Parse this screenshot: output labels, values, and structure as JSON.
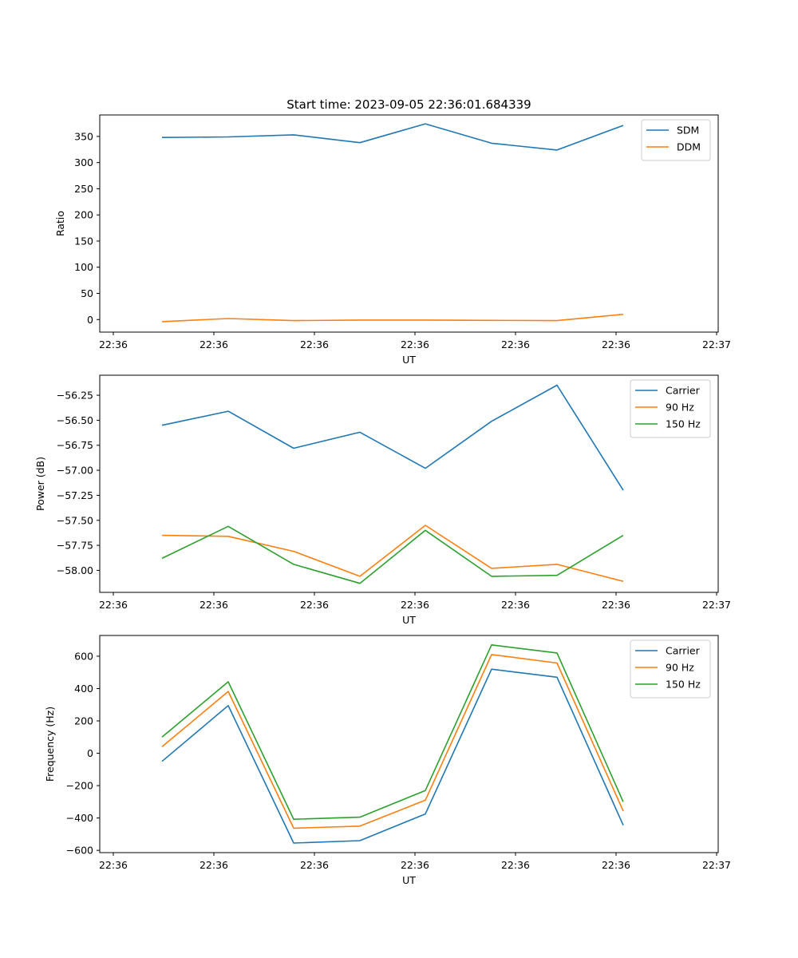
{
  "figure": {
    "title": "Start time: 2023-09-05 22:36:01.684339"
  },
  "chart_data": [
    {
      "type": "line",
      "xlabel": "UT",
      "ylabel": "Ratio",
      "x_tick_labels": [
        "22:36",
        "22:36",
        "22:36",
        "22:36",
        "22:36",
        "22:36",
        "22:37"
      ],
      "x": [
        1,
        2,
        3,
        4,
        5,
        6,
        7,
        8
      ],
      "xlim": [
        -0.15,
        10.7
      ],
      "ylim": [
        -24,
        391
      ],
      "y_ticks": [
        0,
        50,
        100,
        150,
        200,
        250,
        300,
        350
      ],
      "legend": "upper right",
      "series": [
        {
          "name": "SDM",
          "color": "#1f77b4",
          "values": [
            348,
            349,
            353,
            338,
            374,
            337,
            324,
            371
          ]
        },
        {
          "name": "DDM",
          "color": "#ff7f0e",
          "values": [
            -4,
            2,
            -2,
            -1,
            -1,
            -1.5,
            -2,
            10
          ]
        }
      ]
    },
    {
      "type": "line",
      "xlabel": "UT",
      "ylabel": "Power (dB)",
      "x_tick_labels": [
        "22:36",
        "22:36",
        "22:36",
        "22:36",
        "22:36",
        "22:36",
        "22:37"
      ],
      "x": [
        1,
        2,
        3,
        4,
        5,
        6,
        7,
        8
      ],
      "xlim": [
        -0.15,
        10.7
      ],
      "ylim": [
        -58.22,
        -56.05
      ],
      "y_ticks": [
        -58.0,
        -57.75,
        -57.5,
        -57.25,
        -57.0,
        -56.75,
        -56.5,
        -56.25
      ],
      "legend": "upper right",
      "series": [
        {
          "name": "Carrier",
          "color": "#1f77b4",
          "values": [
            -56.55,
            -56.41,
            -56.78,
            -56.62,
            -56.98,
            -56.51,
            -56.15,
            -57.2
          ]
        },
        {
          "name": "90 Hz",
          "color": "#ff7f0e",
          "values": [
            -57.65,
            -57.66,
            -57.81,
            -58.06,
            -57.55,
            -57.98,
            -57.94,
            -58.11
          ]
        },
        {
          "name": "150 Hz",
          "color": "#2ca02c",
          "values": [
            -57.88,
            -57.56,
            -57.94,
            -58.13,
            -57.6,
            -58.06,
            -58.05,
            -57.65
          ]
        }
      ]
    },
    {
      "type": "line",
      "xlabel": "UT",
      "ylabel": "Frequency (Hz)",
      "x_tick_labels": [
        "22:36",
        "22:36",
        "22:36",
        "22:36",
        "22:36",
        "22:36",
        "22:37"
      ],
      "x": [
        1,
        2,
        3,
        4,
        5,
        6,
        7,
        8
      ],
      "xlim": [
        -0.15,
        10.7
      ],
      "ylim": [
        -614,
        728
      ],
      "y_ticks": [
        -600,
        -400,
        -200,
        0,
        200,
        400,
        600
      ],
      "legend": "upper right",
      "series": [
        {
          "name": "Carrier",
          "color": "#1f77b4",
          "values": [
            -50,
            295,
            -555,
            -540,
            -375,
            520,
            470,
            -445
          ]
        },
        {
          "name": "90 Hz",
          "color": "#ff7f0e",
          "values": [
            40,
            382,
            -463,
            -450,
            -290,
            610,
            558,
            -357
          ]
        },
        {
          "name": "150 Hz",
          "color": "#2ca02c",
          "values": [
            100,
            442,
            -408,
            -395,
            -230,
            670,
            620,
            -300
          ]
        }
      ]
    }
  ]
}
